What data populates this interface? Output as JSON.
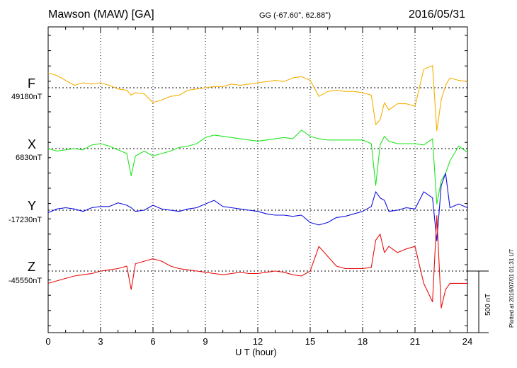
{
  "header": {
    "station": "Mawson (MAW)  [GA]",
    "coords": "GG (-67.60°,  62.88°)",
    "date": "2016/05/31"
  },
  "footer": {
    "xlabel": "U T (hour)",
    "plotted": "Plotted at 2016/07/01 01:31  UT"
  },
  "scale": {
    "label": "500 nT"
  },
  "colors": {
    "F": "#f5b000",
    "X": "#1ee61e",
    "Y": "#1010e0",
    "Z": "#e81010",
    "grid": "#000000"
  },
  "components": [
    {
      "name": "F",
      "baseline": "49180nT"
    },
    {
      "name": "X",
      "baseline": "6830nT"
    },
    {
      "name": "Y",
      "baseline": "-17230nT"
    },
    {
      "name": "Z",
      "baseline": "-45550nT"
    }
  ],
  "chart_data": {
    "type": "line",
    "title": "Mawson (MAW)  [GA]",
    "xlabel": "U T (hour)",
    "x_ticks": [
      "0",
      "3",
      "6",
      "9",
      "12",
      "15",
      "18",
      "21",
      "24"
    ],
    "xlim": [
      0,
      24
    ],
    "grid": true,
    "scale_bar_nT": 500,
    "x": [
      0,
      0.5,
      1,
      1.5,
      2,
      2.5,
      3,
      3.5,
      4,
      4.5,
      4.75,
      5,
      5.5,
      6,
      6.5,
      7,
      7.5,
      8,
      8.5,
      9,
      9.5,
      10,
      10.5,
      11,
      11.5,
      12,
      12.5,
      13,
      13.5,
      14,
      14.5,
      15,
      15.5,
      16,
      16.5,
      17,
      17.5,
      18,
      18.5,
      18.75,
      19,
      19.25,
      19.5,
      20,
      20.5,
      21,
      21.5,
      22,
      22.25,
      22.5,
      22.75,
      23,
      23.5,
      24
    ],
    "series": [
      {
        "name": "F",
        "values": [
          120,
          100,
          60,
          20,
          40,
          30,
          40,
          20,
          -10,
          -20,
          -60,
          -40,
          -50,
          -120,
          -100,
          -70,
          -60,
          -20,
          -10,
          0,
          10,
          10,
          30,
          20,
          30,
          40,
          50,
          60,
          50,
          80,
          90,
          60,
          -70,
          -30,
          -20,
          -30,
          -30,
          -40,
          -60,
          -300,
          -260,
          -120,
          -180,
          -130,
          -130,
          -150,
          150,
          180,
          -350,
          -100,
          20,
          80,
          60,
          50
        ]
      },
      {
        "name": "X",
        "values": [
          0,
          -20,
          -10,
          0,
          -10,
          30,
          40,
          20,
          -10,
          -40,
          -220,
          -60,
          -20,
          -60,
          -40,
          -20,
          10,
          20,
          40,
          90,
          110,
          100,
          90,
          80,
          70,
          60,
          70,
          80,
          90,
          80,
          150,
          100,
          80,
          70,
          70,
          70,
          70,
          70,
          40,
          -300,
          30,
          100,
          60,
          40,
          40,
          40,
          30,
          80,
          -450,
          -260,
          -200,
          -100,
          20,
          -30
        ]
      },
      {
        "name": "Y",
        "values": [
          -20,
          10,
          20,
          10,
          -10,
          20,
          30,
          30,
          60,
          40,
          20,
          -10,
          0,
          40,
          10,
          0,
          -10,
          10,
          20,
          50,
          80,
          30,
          20,
          10,
          0,
          -10,
          -30,
          -40,
          -40,
          -50,
          -40,
          -100,
          -120,
          -100,
          -60,
          -50,
          -30,
          -10,
          30,
          150,
          100,
          80,
          -10,
          0,
          20,
          10,
          150,
          100,
          -250,
          200,
          300,
          20,
          50,
          20
        ]
      },
      {
        "name": "Z",
        "values": [
          -100,
          -80,
          -60,
          -40,
          -30,
          -20,
          0,
          10,
          20,
          40,
          -150,
          60,
          80,
          100,
          80,
          40,
          20,
          10,
          0,
          -10,
          -20,
          -30,
          -20,
          -10,
          -20,
          -20,
          -10,
          0,
          -10,
          -30,
          -40,
          0,
          200,
          120,
          40,
          20,
          20,
          20,
          30,
          250,
          300,
          150,
          200,
          150,
          180,
          200,
          -100,
          -250,
          450,
          -300,
          -150,
          -100,
          -100,
          -100
        ]
      }
    ]
  }
}
